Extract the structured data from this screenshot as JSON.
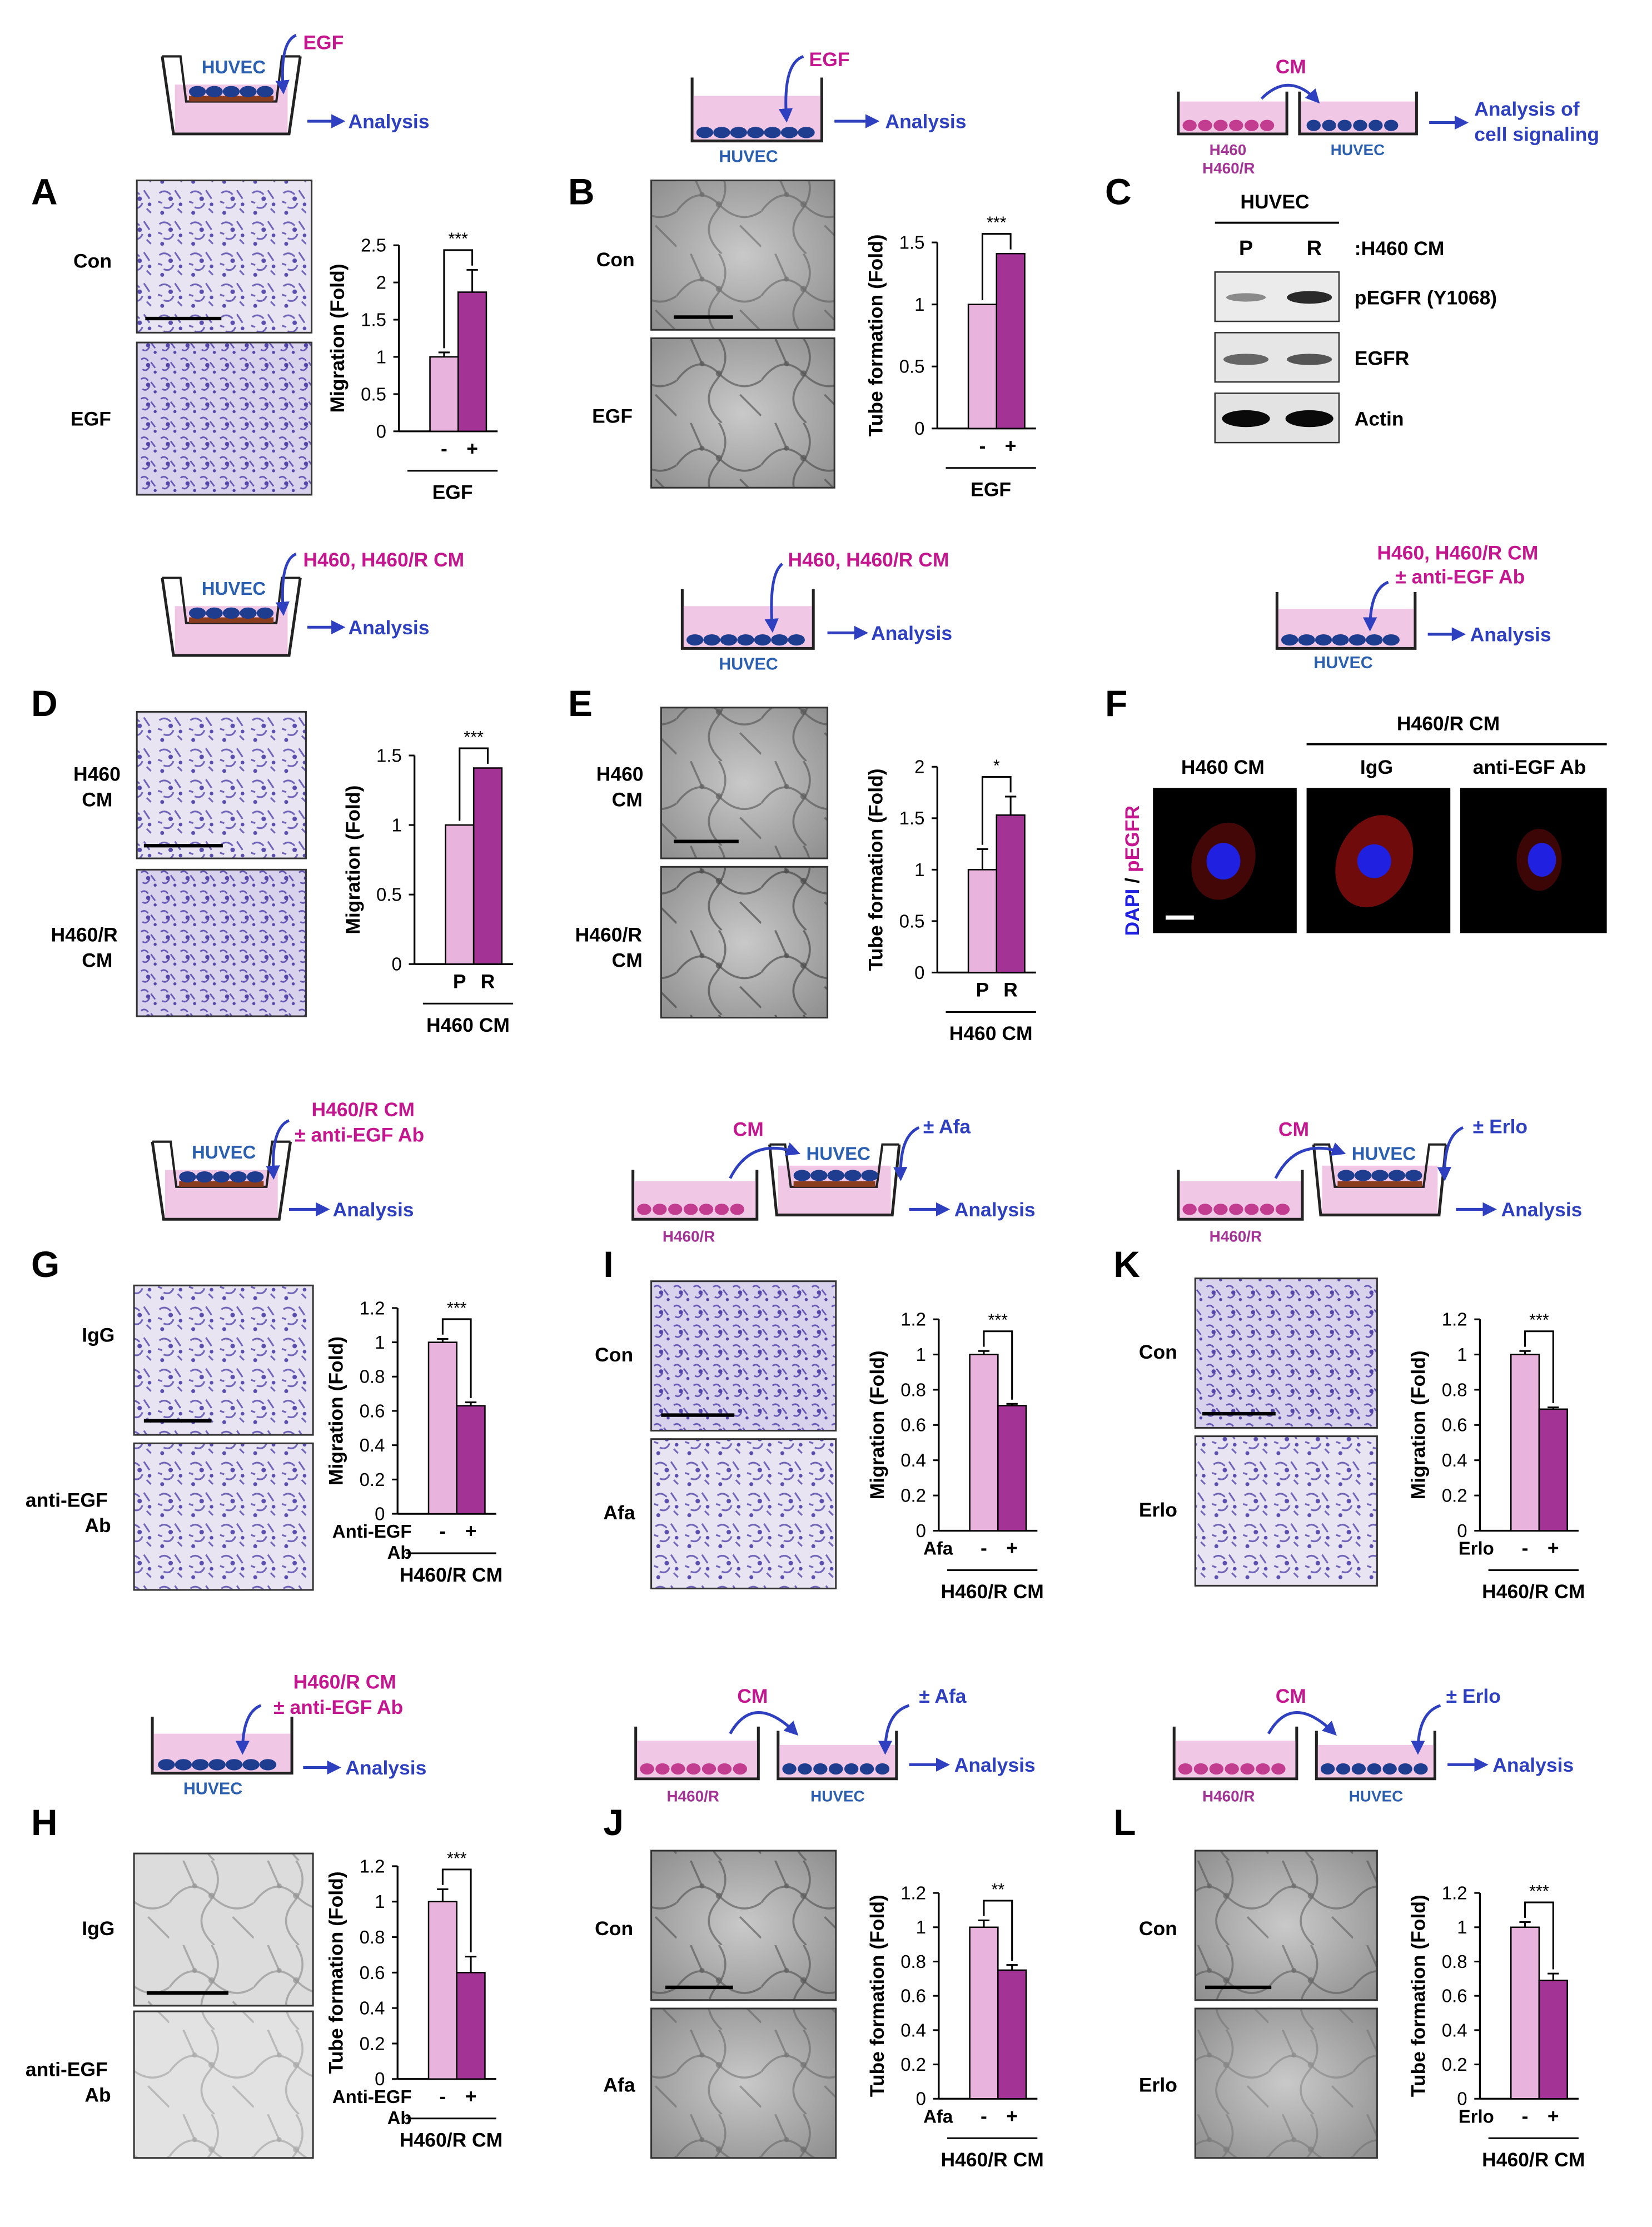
{
  "colors": {
    "light_bar": "#e8b4dd",
    "dark_bar": "#a33496",
    "magenta_text": "#c4178f",
    "blue_text": "#2e3fbf",
    "huvec_text": "#2b5fb0",
    "medium": "#f0c8e6",
    "cell_blue": "#1e3d8f",
    "cell_pink": "#c23c8f",
    "membrane": "#8a3c1e"
  },
  "labels": {
    "analysis": "Analysis",
    "analysis_of": "Analysis of",
    "cell_signaling": "cell signaling",
    "huvec": "HUVEC",
    "egf": "EGF",
    "cm": "CM",
    "h460": "H460",
    "h460r": "H460/R",
    "h460_h460r_cm": "H460, H460/R CM",
    "h460r_cm": "H460/R CM",
    "pm_anti_egf": "± anti-EGF Ab",
    "pm_afa": "± Afa",
    "pm_erlo": "± Erlo"
  },
  "panels": {
    "A": {
      "letter": "A",
      "top_label": "Con",
      "bottom_label": "EGF",
      "group": "EGF"
    },
    "B": {
      "letter": "B",
      "top_label": "Con",
      "bottom_label": "EGF",
      "group": "EGF"
    },
    "C": {
      "letter": "C",
      "header": "HUVEC",
      "lanes": [
        "P",
        "R"
      ],
      "lane_note": ":H460 CM",
      "blots": [
        "pEGFR (Y1068)",
        "EGFR",
        "Actin"
      ]
    },
    "D": {
      "letter": "D",
      "top_label_1": "H460",
      "top_label_2": "CM",
      "bottom_label_1": "H460/R",
      "bottom_label_2": "CM",
      "group": "H460 CM"
    },
    "E": {
      "letter": "E",
      "top_label_1": "H460",
      "top_label_2": "CM",
      "bottom_label_1": "H460/R",
      "bottom_label_2": "CM",
      "group": "H460 CM"
    },
    "F": {
      "letter": "F",
      "group": "H460/R CM",
      "col1": "H460 CM",
      "col2": "IgG",
      "col3": "anti-EGF Ab",
      "ylabel_dapi": "DAPI",
      "ylabel_sep": " / ",
      "ylabel_pegfr": "pEGFR"
    },
    "G": {
      "letter": "G",
      "top_label": "IgG",
      "bottom_label_1": "anti-EGF",
      "bottom_label_2": "Ab",
      "group": "H460/R CM"
    },
    "H": {
      "letter": "H",
      "top_label": "IgG",
      "bottom_label_1": "anti-EGF",
      "bottom_label_2": "Ab",
      "group": "H460/R CM"
    },
    "I": {
      "letter": "I",
      "top_label": "Con",
      "bottom_label": "Afa",
      "group": "H460/R CM"
    },
    "J": {
      "letter": "J",
      "top_label": "Con",
      "bottom_label": "Afa",
      "group": "H460/R CM"
    },
    "K": {
      "letter": "K",
      "top_label": "Con",
      "bottom_label": "Erlo",
      "group": "H460/R CM"
    },
    "L": {
      "letter": "L",
      "top_label": "Con",
      "bottom_label": "Erlo",
      "group": "H460/R CM"
    }
  },
  "chart_data": [
    {
      "panel": "A",
      "type": "bar",
      "ylabel": "Migration (Fold)",
      "ylim": [
        0,
        2.5
      ],
      "yticks": [
        "0",
        "0.5",
        "1",
        "1.5",
        "2",
        "2.5"
      ],
      "ticks": [
        0,
        0.5,
        1,
        1.5,
        2,
        2.5
      ],
      "categories": [
        "-",
        "+"
      ],
      "values": [
        1.0,
        1.87
      ],
      "errors": [
        0.06,
        0.3
      ],
      "sig": "***",
      "row_label": "",
      "row_label_2": "",
      "group": "EGF"
    },
    {
      "panel": "B",
      "type": "bar",
      "ylabel": "Tube formation (Fold)",
      "ylim": [
        0,
        1.5
      ],
      "yticks": [
        "0",
        "0.5",
        "1",
        "1.5"
      ],
      "ticks": [
        0,
        0.5,
        1,
        1.5
      ],
      "categories": [
        "-",
        "+"
      ],
      "values": [
        1.0,
        1.41
      ],
      "errors": [
        0.0,
        0.0
      ],
      "sig": "***",
      "row_label": "",
      "row_label_2": "",
      "group": "EGF"
    },
    {
      "panel": "D",
      "type": "bar",
      "ylabel": "Migration (Fold)",
      "ylim": [
        0,
        1.5
      ],
      "yticks": [
        "0",
        "0.5",
        "1",
        "1.5"
      ],
      "ticks": [
        0,
        0.5,
        1,
        1.5
      ],
      "categories": [
        "P",
        "R"
      ],
      "values": [
        1.0,
        1.41
      ],
      "errors": [
        0.0,
        0.0
      ],
      "sig": "***",
      "row_label": "",
      "row_label_2": "",
      "group": "H460 CM"
    },
    {
      "panel": "E",
      "type": "bar",
      "ylabel": "Tube formation (Fold)",
      "ylim": [
        0,
        2
      ],
      "yticks": [
        "0",
        "0.5",
        "1",
        "1.5",
        "2"
      ],
      "ticks": [
        0,
        0.5,
        1,
        1.5,
        2
      ],
      "categories": [
        "P",
        "R"
      ],
      "values": [
        1.0,
        1.53
      ],
      "errors": [
        0.2,
        0.18
      ],
      "sig": "*",
      "row_label": "",
      "row_label_2": "",
      "group": "H460 CM"
    },
    {
      "panel": "G",
      "type": "bar",
      "ylabel": "Migration (Fold)",
      "ylim": [
        0,
        1.2
      ],
      "yticks": [
        "0",
        "0.2",
        "0.4",
        "0.6",
        "0.8",
        "1",
        "1.2"
      ],
      "ticks": [
        0,
        0.2,
        0.4,
        0.6,
        0.8,
        1,
        1.2
      ],
      "categories": [
        "-",
        "+"
      ],
      "values": [
        1.0,
        0.63
      ],
      "errors": [
        0.02,
        0.02
      ],
      "sig": "***",
      "row_label": "Anti-EGF",
      "row_label_2": "Ab",
      "group": "H460/R CM"
    },
    {
      "panel": "H",
      "type": "bar",
      "ylabel": "Tube formation (Fold)",
      "ylim": [
        0,
        1.2
      ],
      "yticks": [
        "0",
        "0.2",
        "0.4",
        "0.6",
        "0.8",
        "1",
        "1.2"
      ],
      "ticks": [
        0,
        0.2,
        0.4,
        0.6,
        0.8,
        1,
        1.2
      ],
      "categories": [
        "-",
        "+"
      ],
      "values": [
        1.0,
        0.6
      ],
      "errors": [
        0.07,
        0.09
      ],
      "sig": "***",
      "row_label": "Anti-EGF",
      "row_label_2": "Ab",
      "group": "H460/R CM"
    },
    {
      "panel": "I",
      "type": "bar",
      "ylabel": "Migration (Fold)",
      "ylim": [
        0,
        1.2
      ],
      "yticks": [
        "0",
        "0.2",
        "0.4",
        "0.6",
        "0.8",
        "1",
        "1.2"
      ],
      "ticks": [
        0,
        0.2,
        0.4,
        0.6,
        0.8,
        1,
        1.2
      ],
      "categories": [
        "-",
        "+"
      ],
      "values": [
        1.0,
        0.71
      ],
      "errors": [
        0.02,
        0.01
      ],
      "sig": "***",
      "row_label": "Afa",
      "row_label_2": "",
      "group": "H460/R CM"
    },
    {
      "panel": "J",
      "type": "bar",
      "ylabel": "Tube formation (Fold)",
      "ylim": [
        0,
        1.2
      ],
      "yticks": [
        "0",
        "0.2",
        "0.4",
        "0.6",
        "0.8",
        "1",
        "1.2"
      ],
      "ticks": [
        0,
        0.2,
        0.4,
        0.6,
        0.8,
        1,
        1.2
      ],
      "categories": [
        "-",
        "+"
      ],
      "values": [
        1.0,
        0.75
      ],
      "errors": [
        0.04,
        0.03
      ],
      "sig": "**",
      "row_label": "Afa",
      "row_label_2": "",
      "group": "H460/R CM"
    },
    {
      "panel": "K",
      "type": "bar",
      "ylabel": "Migration (Fold)",
      "ylim": [
        0,
        1.2
      ],
      "yticks": [
        "0",
        "0.2",
        "0.4",
        "0.6",
        "0.8",
        "1",
        "1.2"
      ],
      "ticks": [
        0,
        0.2,
        0.4,
        0.6,
        0.8,
        1,
        1.2
      ],
      "categories": [
        "-",
        "+"
      ],
      "values": [
        1.0,
        0.69
      ],
      "errors": [
        0.02,
        0.01
      ],
      "sig": "***",
      "row_label": "Erlo",
      "row_label_2": "",
      "group": "H460/R CM"
    },
    {
      "panel": "L",
      "type": "bar",
      "ylabel": "Tube formation (Fold)",
      "ylim": [
        0,
        1.2
      ],
      "yticks": [
        "0",
        "0.2",
        "0.4",
        "0.6",
        "0.8",
        "1",
        "1.2"
      ],
      "ticks": [
        0,
        0.2,
        0.4,
        0.6,
        0.8,
        1,
        1.2
      ],
      "categories": [
        "-",
        "+"
      ],
      "values": [
        1.0,
        0.69
      ],
      "errors": [
        0.03,
        0.04
      ],
      "sig": "***",
      "row_label": "Erlo",
      "row_label_2": "",
      "group": "H460/R CM"
    }
  ]
}
